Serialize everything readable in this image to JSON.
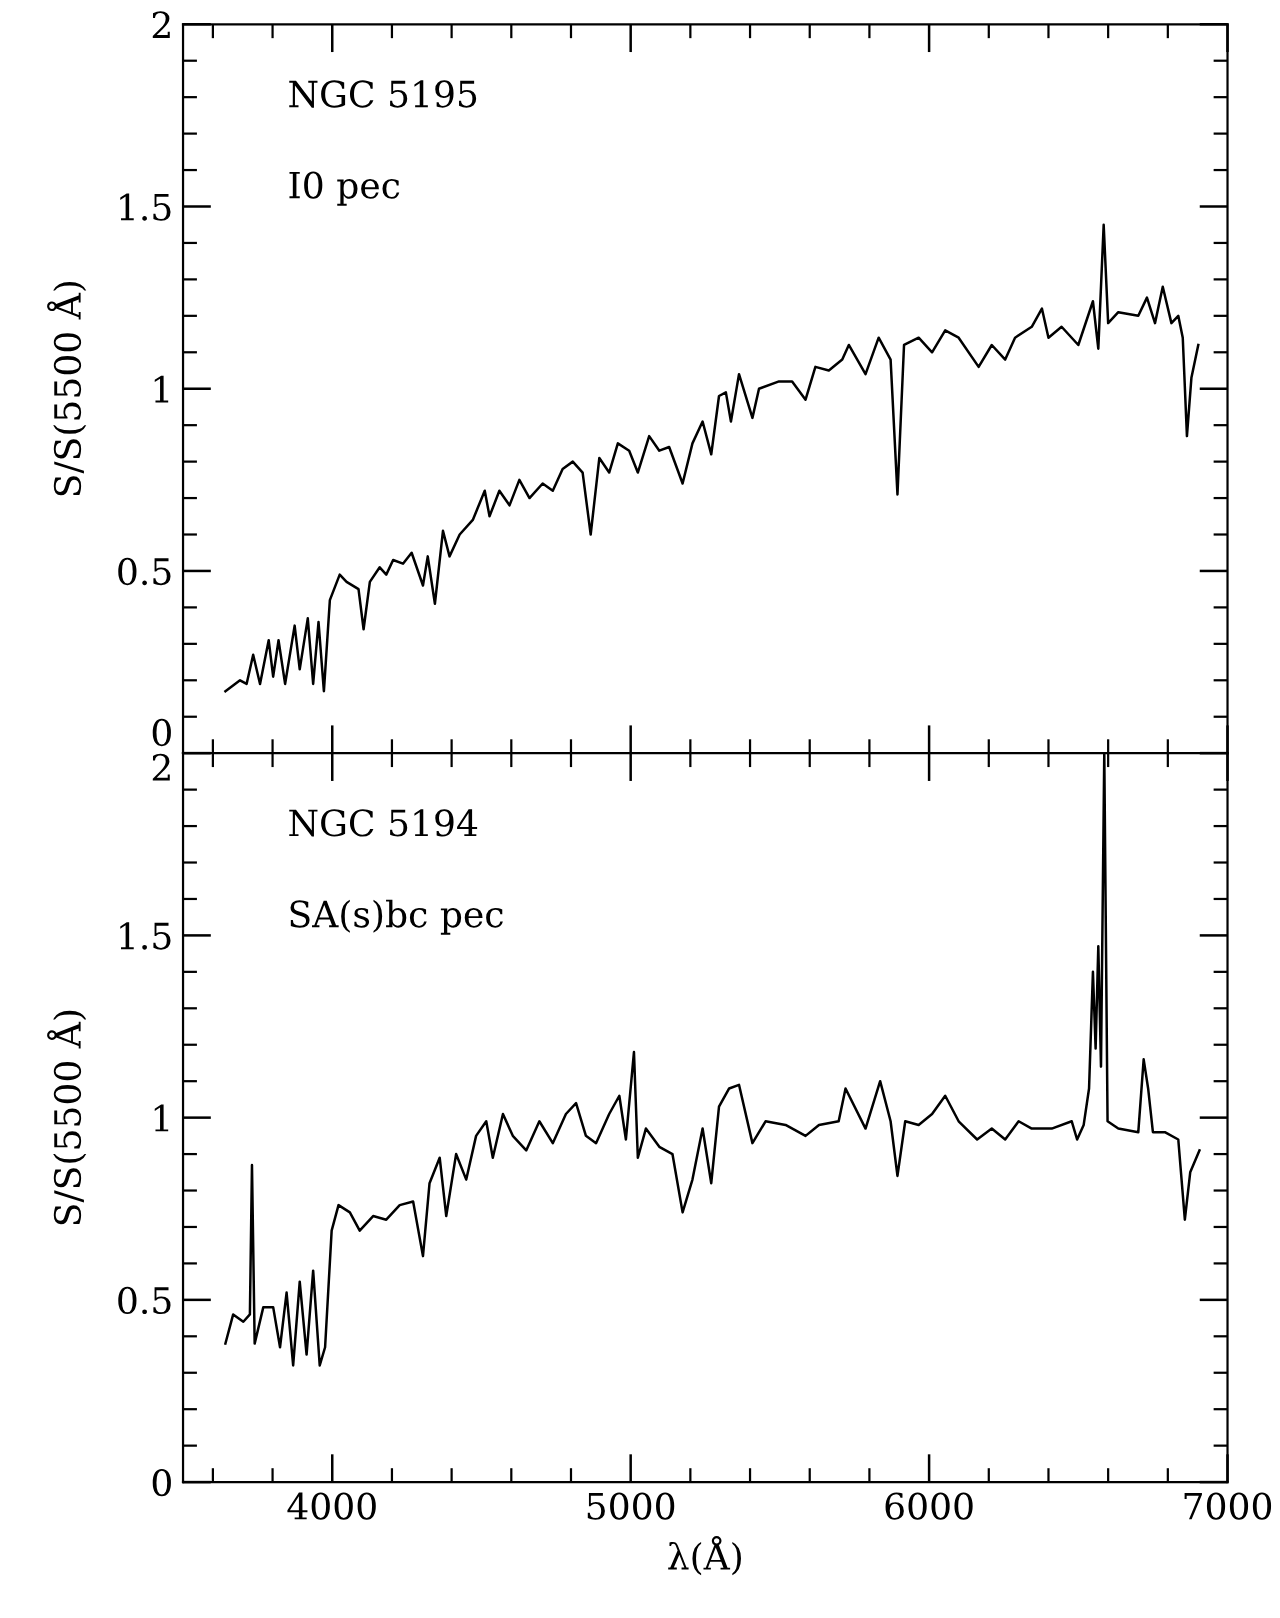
{
  "chart_data": [
    {
      "type": "line",
      "ylabel": "S/S(5500 Å)",
      "annotations": [
        "NGC 5195",
        "I0 pec"
      ],
      "xlim": [
        3500,
        7000
      ],
      "xticks": [
        4000,
        5000,
        6000,
        7000
      ],
      "ylim": [
        0,
        2
      ],
      "yticks": [
        0,
        0.5,
        1,
        1.5,
        2
      ],
      "tick_labels": "y",
      "grid": false,
      "marker": "none",
      "line_style": "solid",
      "series": [
        {
          "color": "#000000",
          "x": [
            3642,
            3691,
            3713,
            3735,
            3758,
            3787,
            3802,
            3820,
            3842,
            3874,
            3891,
            3918,
            3936,
            3954,
            3972,
            3992,
            4025,
            4048,
            4088,
            4105,
            4126,
            4159,
            4181,
            4204,
            4237,
            4266,
            4304,
            4320,
            4344,
            4371,
            4393,
            4427,
            4471,
            4511,
            4527,
            4560,
            4594,
            4627,
            4661,
            4705,
            4739,
            4772,
            4806,
            4839,
            4866,
            4895,
            4928,
            4957,
            4995,
            5024,
            5062,
            5096,
            5129,
            5174,
            5207,
            5241,
            5270,
            5296,
            5319,
            5336,
            5363,
            5408,
            5430,
            5497,
            5541,
            5586,
            5619,
            5664,
            5709,
            5731,
            5787,
            5831,
            5871,
            5894,
            5916,
            5965,
            6010,
            6054,
            6099,
            6166,
            6210,
            6255,
            6288,
            6344,
            6378,
            6400,
            6444,
            6500,
            6549,
            6567,
            6585,
            6600,
            6634,
            6701,
            6730,
            6757,
            6783,
            6812,
            6835,
            6850,
            6864,
            6879,
            6902
          ],
          "values": [
            0.17,
            0.2,
            0.19,
            0.27,
            0.19,
            0.31,
            0.21,
            0.31,
            0.19,
            0.35,
            0.23,
            0.37,
            0.19,
            0.36,
            0.17,
            0.42,
            0.49,
            0.47,
            0.45,
            0.34,
            0.47,
            0.51,
            0.49,
            0.53,
            0.52,
            0.55,
            0.46,
            0.54,
            0.41,
            0.61,
            0.54,
            0.6,
            0.64,
            0.72,
            0.65,
            0.72,
            0.68,
            0.75,
            0.7,
            0.74,
            0.72,
            0.78,
            0.8,
            0.77,
            0.6,
            0.81,
            0.77,
            0.85,
            0.83,
            0.77,
            0.87,
            0.83,
            0.84,
            0.74,
            0.85,
            0.91,
            0.82,
            0.98,
            0.99,
            0.91,
            1.04,
            0.92,
            1.0,
            1.02,
            1.02,
            0.97,
            1.06,
            1.05,
            1.08,
            1.12,
            1.04,
            1.14,
            1.08,
            0.71,
            1.12,
            1.14,
            1.1,
            1.16,
            1.14,
            1.06,
            1.12,
            1.08,
            1.14,
            1.17,
            1.22,
            1.14,
            1.17,
            1.12,
            1.24,
            1.11,
            1.45,
            1.18,
            1.21,
            1.2,
            1.25,
            1.18,
            1.28,
            1.18,
            1.2,
            1.14,
            0.87,
            1.03,
            1.12
          ]
        }
      ]
    },
    {
      "type": "line",
      "ylabel": "S/S(5500 Å)",
      "xlabel": "λ(Å)",
      "annotations": [
        "NGC 5194",
        "SA(s)bc pec"
      ],
      "xlim": [
        3500,
        7000
      ],
      "xticks": [
        4000,
        5000,
        6000,
        7000
      ],
      "ylim": [
        0,
        2
      ],
      "yticks": [
        0,
        0.5,
        1,
        1.5,
        2
      ],
      "grid": false,
      "marker": "none",
      "line_style": "solid",
      "series": [
        {
          "color": "#000000",
          "x": [
            3642,
            3668,
            3702,
            3724,
            3731,
            3740,
            3769,
            3802,
            3825,
            3847,
            3869,
            3891,
            3914,
            3936,
            3958,
            3976,
            3998,
            4021,
            4059,
            4092,
            4137,
            4181,
            4226,
            4271,
            4304,
            4326,
            4360,
            4382,
            4415,
            4449,
            4482,
            4516,
            4538,
            4572,
            4605,
            4650,
            4694,
            4739,
            4783,
            4817,
            4850,
            4884,
            4928,
            4962,
            4984,
            5011,
            5024,
            5051,
            5096,
            5140,
            5174,
            5207,
            5241,
            5270,
            5296,
            5330,
            5363,
            5408,
            5452,
            5519,
            5586,
            5631,
            5697,
            5720,
            5787,
            5836,
            5871,
            5894,
            5920,
            5965,
            6010,
            6054,
            6099,
            6161,
            6210,
            6255,
            6300,
            6344,
            6411,
            6478,
            6496,
            6518,
            6536,
            6549,
            6558,
            6567,
            6576,
            6587,
            6598,
            6634,
            6701,
            6719,
            6734,
            6750,
            6790,
            6835,
            6857,
            6875,
            6906
          ],
          "values": [
            0.38,
            0.46,
            0.44,
            0.46,
            0.87,
            0.38,
            0.48,
            0.48,
            0.37,
            0.52,
            0.32,
            0.55,
            0.35,
            0.58,
            0.32,
            0.37,
            0.69,
            0.76,
            0.74,
            0.69,
            0.73,
            0.72,
            0.76,
            0.77,
            0.62,
            0.82,
            0.89,
            0.73,
            0.9,
            0.83,
            0.95,
            0.99,
            0.89,
            1.01,
            0.95,
            0.91,
            0.99,
            0.93,
            1.01,
            1.04,
            0.95,
            0.93,
            1.01,
            1.06,
            0.94,
            1.18,
            0.89,
            0.97,
            0.92,
            0.9,
            0.74,
            0.83,
            0.97,
            0.82,
            1.03,
            1.08,
            1.09,
            0.93,
            0.99,
            0.98,
            0.95,
            0.98,
            0.99,
            1.08,
            0.97,
            1.1,
            0.99,
            0.84,
            0.99,
            0.98,
            1.01,
            1.06,
            0.99,
            0.94,
            0.97,
            0.94,
            0.99,
            0.97,
            0.97,
            0.99,
            0.94,
            0.98,
            1.08,
            1.4,
            1.19,
            1.47,
            1.14,
            2.0,
            0.99,
            0.97,
            0.96,
            1.16,
            1.08,
            0.96,
            0.96,
            0.94,
            0.72,
            0.85,
            0.91
          ]
        }
      ]
    }
  ]
}
